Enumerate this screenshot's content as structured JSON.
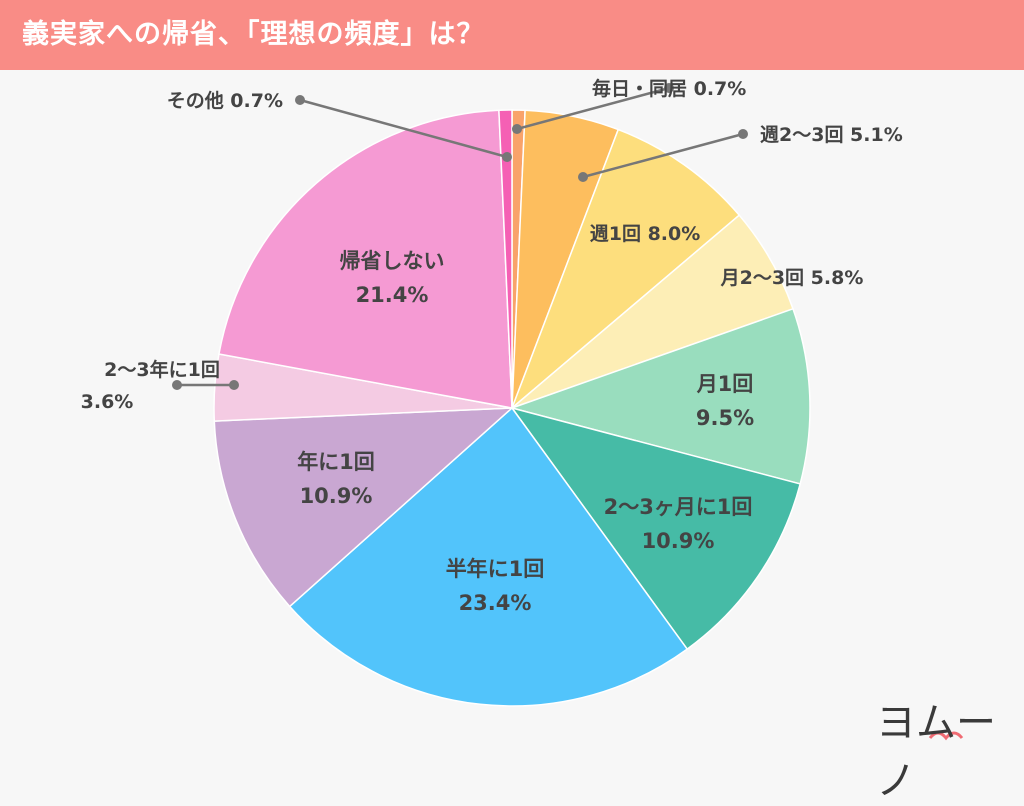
{
  "header": {
    "title": "義実家への帰省、「理想の頻度」は？"
  },
  "chart_data": {
    "type": "pie",
    "unit": "%",
    "start_angle_deg": 0,
    "direction": "clockwise",
    "slices": [
      {
        "label": "毎日・同居",
        "value": 0.7,
        "value_text": "0.7%",
        "color": "#f9a36a"
      },
      {
        "label": "週2〜3回",
        "value": 5.1,
        "value_text": "5.1%",
        "color": "#fdbe5e"
      },
      {
        "label": "週1回",
        "value": 8.0,
        "value_text": "8.0%",
        "color": "#fdde7d"
      },
      {
        "label": "月2〜3回",
        "value": 5.8,
        "value_text": "5.8%",
        "color": "#fdeeb6"
      },
      {
        "label": "月1回",
        "value": 9.5,
        "value_text": "9.5%",
        "color": "#99ddbe"
      },
      {
        "label": "2〜3ヶ月に1回",
        "value": 10.9,
        "value_text": "10.9%",
        "color": "#46bba6"
      },
      {
        "label": "半年に1回",
        "value": 23.4,
        "value_text": "23.4%",
        "color": "#52c4fb"
      },
      {
        "label": "年に1回",
        "value": 10.9,
        "value_text": "10.9%",
        "color": "#c9a7d2"
      },
      {
        "label": "2〜3年に1回",
        "value": 3.6,
        "value_text": "3.6%",
        "color": "#f4cbe3"
      },
      {
        "label": "帰省しない",
        "value": 21.4,
        "value_text": "21.4%",
        "color": "#f59ad3"
      },
      {
        "label": "その他",
        "value": 0.7,
        "value_text": "0.7%",
        "color": "#f560b4"
      }
    ]
  },
  "logo": {
    "text": "ヨムーノ",
    "accent_color": "#f06b73"
  }
}
